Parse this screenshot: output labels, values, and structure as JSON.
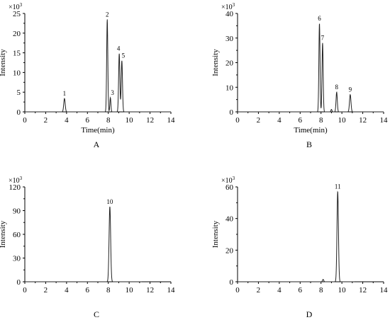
{
  "chart_data": [
    {
      "type": "line",
      "panel_label": "A",
      "xlabel": "Time(min)",
      "ylabel": "Intensity",
      "y_multiplier": "×10",
      "y_multiplier_exp": "3",
      "xlim": [
        0,
        14
      ],
      "ylim": [
        0,
        25
      ],
      "x_ticks": [
        0,
        2,
        4,
        6,
        8,
        10,
        12,
        14
      ],
      "y_ticks": [
        0,
        5,
        10,
        15,
        20,
        25
      ],
      "trace_end": 14,
      "grid": false,
      "peaks": [
        {
          "label": "1",
          "rt": 3.8,
          "height": 3.4,
          "width": 0.07
        },
        {
          "label": "2",
          "rt": 7.9,
          "height": 23.5,
          "width": 0.055
        },
        {
          "label": "3",
          "rt": 8.2,
          "height": 3.6,
          "width": 0.05
        },
        {
          "label": "4",
          "rt": 9.05,
          "height": 14.8,
          "width": 0.06
        },
        {
          "label": "5",
          "rt": 9.3,
          "height": 13.0,
          "width": 0.06
        }
      ]
    },
    {
      "type": "line",
      "panel_label": "B",
      "xlabel": "Time(min)",
      "ylabel": "Intensity",
      "y_multiplier": "×10",
      "y_multiplier_exp": "3",
      "xlim": [
        0,
        14
      ],
      "ylim": [
        0,
        40
      ],
      "x_ticks": [
        0,
        2,
        4,
        6,
        8,
        10,
        12,
        14
      ],
      "y_ticks": [
        0,
        10,
        20,
        30,
        40
      ],
      "trace_end": 14,
      "grid": false,
      "peaks": [
        {
          "label": "6",
          "rt": 7.85,
          "height": 36.0,
          "width": 0.055
        },
        {
          "label": "7",
          "rt": 8.15,
          "height": 28.0,
          "width": 0.055
        },
        {
          "label": "",
          "rt": 9.0,
          "height": 1.0,
          "width": 0.05
        },
        {
          "label": "8",
          "rt": 9.5,
          "height": 8.0,
          "width": 0.06
        },
        {
          "label": "9",
          "rt": 10.8,
          "height": 7.0,
          "width": 0.07
        }
      ]
    },
    {
      "type": "line",
      "panel_label": "C",
      "xlabel": "",
      "ylabel": "Intensity",
      "y_multiplier": "×10",
      "y_multiplier_exp": "3",
      "xlim": [
        0,
        14
      ],
      "ylim": [
        0,
        120
      ],
      "x_ticks": [
        0,
        2,
        4,
        6,
        8,
        10,
        12,
        14
      ],
      "y_ticks": [
        0,
        30,
        60,
        90,
        120
      ],
      "trace_end": 11.2,
      "grid": false,
      "peaks": [
        {
          "label": "10",
          "rt": 8.15,
          "height": 95.0,
          "width": 0.075
        }
      ]
    },
    {
      "type": "line",
      "panel_label": "D",
      "xlabel": "",
      "ylabel": "Intensity",
      "y_multiplier": "×10",
      "y_multiplier_exp": "3",
      "xlim": [
        0,
        14
      ],
      "ylim": [
        0,
        60
      ],
      "x_ticks": [
        0,
        2,
        4,
        6,
        8,
        10,
        12,
        14
      ],
      "y_ticks": [
        0,
        20,
        40,
        60
      ],
      "trace_end": 11.2,
      "grid": false,
      "peaks": [
        {
          "label": "",
          "rt": 8.2,
          "height": 1.5,
          "width": 0.06
        },
        {
          "label": "11",
          "rt": 9.6,
          "height": 57.0,
          "width": 0.07
        }
      ]
    }
  ]
}
